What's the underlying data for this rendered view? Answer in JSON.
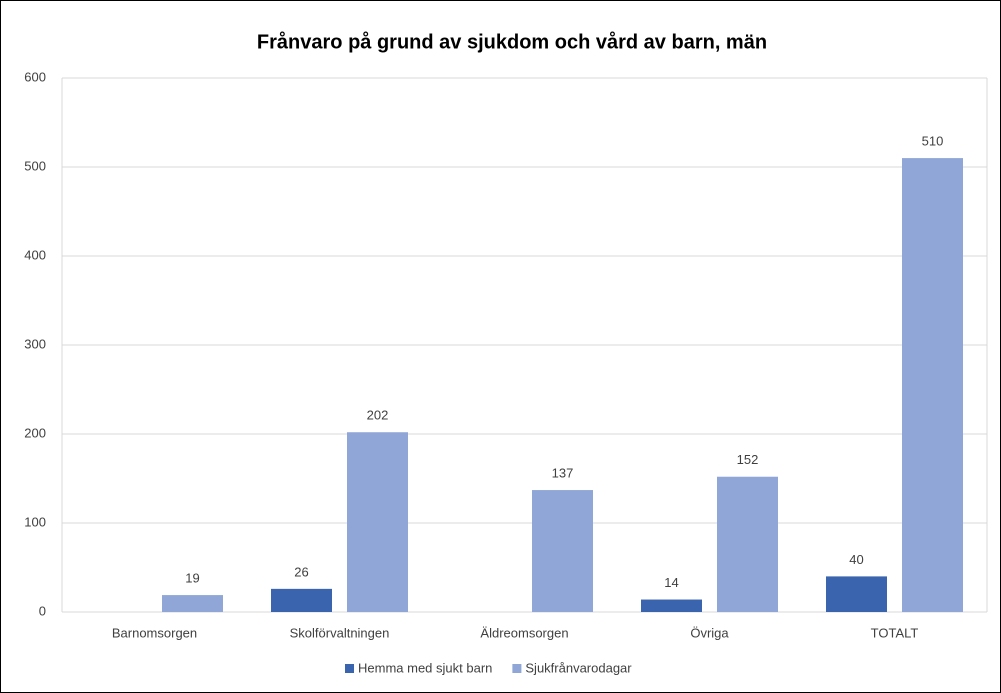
{
  "chart_data": {
    "type": "bar",
    "title": "Frånvaro på grund av sjukdom och vård av barn, män",
    "categories": [
      "Barnomsorgen",
      "Skolförvaltningen",
      "Äldreomsorgen",
      "Övriga",
      "TOTALT"
    ],
    "series": [
      {
        "name": "Hemma med sjukt barn",
        "color": "#3a64ad",
        "values": [
          null,
          26,
          null,
          14,
          40
        ]
      },
      {
        "name": "Sjukfrånvarodagar",
        "color": "#8fa6d6",
        "values": [
          19,
          202,
          137,
          152,
          510
        ]
      }
    ],
    "ylim": [
      0,
      600
    ],
    "yticks": [
      0,
      100,
      200,
      300,
      400,
      500,
      600
    ],
    "grid": true,
    "legend": "bottom"
  }
}
